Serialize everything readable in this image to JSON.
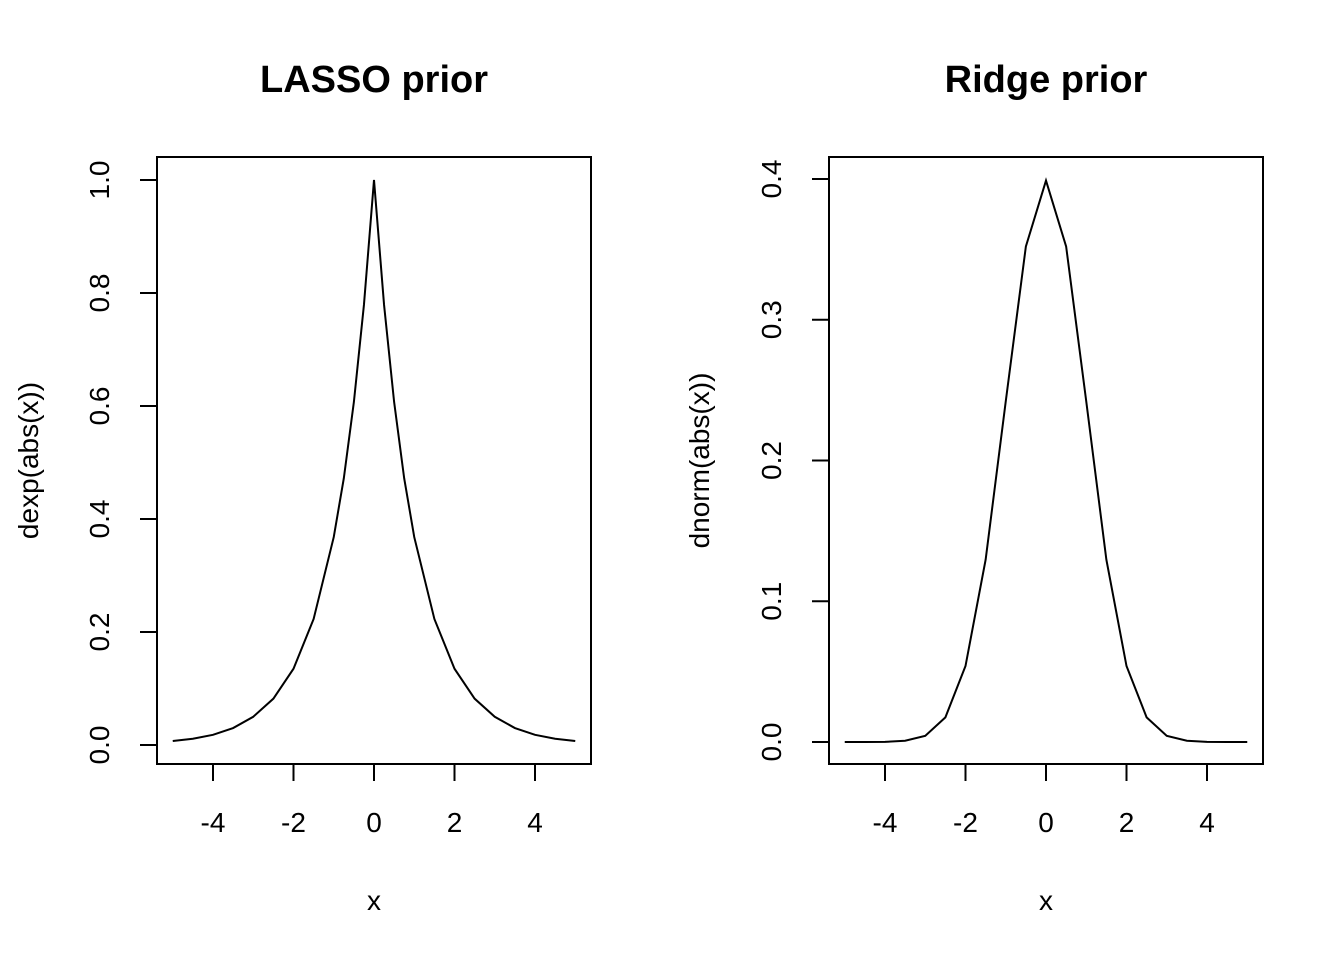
{
  "chart_data": [
    {
      "type": "line",
      "title": "LASSO prior",
      "xlabel": "x",
      "ylabel": "dexp(abs(x))",
      "xlim": [
        -5,
        5
      ],
      "ylim": [
        0,
        1
      ],
      "xticks": [
        -4,
        -2,
        0,
        2,
        4
      ],
      "xtick_labels": [
        "-4",
        "-2",
        "0",
        "2",
        "4"
      ],
      "yticks": [
        0,
        0.2,
        0.4,
        0.6,
        0.8,
        1.0
      ],
      "ytick_labels": [
        "0.0",
        "0.2",
        "0.4",
        "0.6",
        "0.8",
        "1.0"
      ],
      "grid": false,
      "series": [
        {
          "x": [
            -5,
            -4.5,
            -4,
            -3.5,
            -3,
            -2.5,
            -2,
            -1.5,
            -1,
            -0.75,
            -0.5,
            -0.25,
            0,
            0.25,
            0.5,
            0.75,
            1,
            1.5,
            2,
            2.5,
            3,
            3.5,
            4,
            4.5,
            5
          ],
          "values": [
            0.007,
            0.011,
            0.018,
            0.03,
            0.05,
            0.082,
            0.135,
            0.223,
            0.368,
            0.472,
            0.607,
            0.779,
            1.0,
            0.779,
            0.607,
            0.472,
            0.368,
            0.223,
            0.135,
            0.082,
            0.05,
            0.03,
            0.018,
            0.011,
            0.007
          ]
        }
      ]
    },
    {
      "type": "line",
      "title": "Ridge prior",
      "xlabel": "x",
      "ylabel": "dnorm(abs(x))",
      "xlim": [
        -5,
        5
      ],
      "ylim": [
        0,
        0.4
      ],
      "xticks": [
        -4,
        -2,
        0,
        2,
        4
      ],
      "xtick_labels": [
        "-4",
        "-2",
        "0",
        "2",
        "4"
      ],
      "yticks": [
        0,
        0.1,
        0.2,
        0.3,
        0.4
      ],
      "ytick_labels": [
        "0.0",
        "0.1",
        "0.2",
        "0.3",
        "0.4"
      ],
      "grid": false,
      "series": [
        {
          "x": [
            -5,
            -4.5,
            -4,
            -3.5,
            -3,
            -2.5,
            -2,
            -1.5,
            -1,
            -0.5,
            0,
            0.5,
            1,
            1.5,
            2,
            2.5,
            3,
            3.5,
            4,
            4.5,
            5
          ],
          "values": [
            0.0,
            0.0,
            0.0001,
            0.0009,
            0.0044,
            0.0175,
            0.054,
            0.1295,
            0.242,
            0.3521,
            0.3989,
            0.3521,
            0.242,
            0.1295,
            0.054,
            0.0175,
            0.0044,
            0.0009,
            0.0001,
            0.0,
            0.0
          ]
        }
      ]
    }
  ]
}
